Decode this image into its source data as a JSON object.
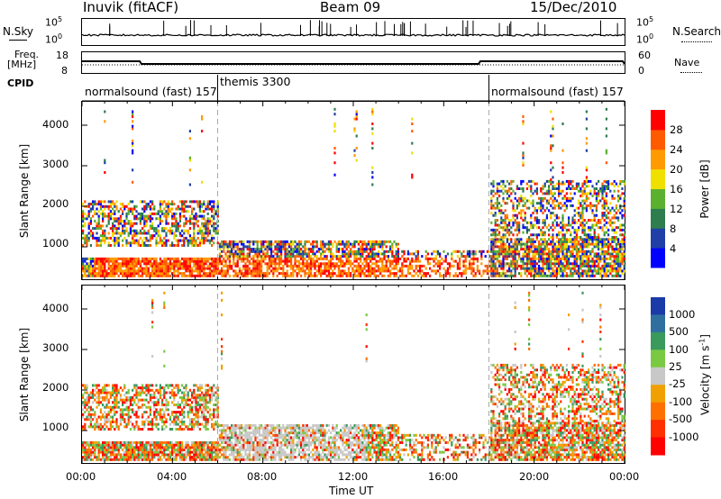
{
  "header": {
    "station": "Inuvik (fitACF)",
    "beam": "Beam 09",
    "date": "15/Dec/2010"
  },
  "noise_panel": {
    "left_label": "N.Sky",
    "left_ticks": [
      "10^5",
      "10^0"
    ],
    "right_ticks": [
      "10^5",
      "10^0"
    ],
    "right_label": "N.Search"
  },
  "freq_panel": {
    "left_label_1": "Freq.",
    "left_label_2": "[MHz]",
    "left_ticks": [
      "18",
      "8"
    ],
    "right_ticks": [
      "60",
      "0"
    ],
    "right_label": "Nave"
  },
  "cpid_panel": {
    "label": "CPID",
    "modes": [
      "normalsound (fast) 157",
      "themis 3300",
      "normalsound (fast) 157"
    ]
  },
  "colors": {
    "power": [
      "#0000ff",
      "#1f3fa6",
      "#2e7d4f",
      "#5cb030",
      "#f0e000",
      "#ff9a00",
      "#ff5a00",
      "#ff0000"
    ],
    "velocity": [
      "#1a3aa8",
      "#2f6fa0",
      "#3a9a5e",
      "#7ac943",
      "#c8c8c8",
      "#f0a000",
      "#ff7000",
      "#ff3000",
      "#ff0000"
    ]
  },
  "chart_data": [
    {
      "type": "heatmap",
      "name": "power",
      "ylabel": "Slant Range [km]",
      "yticks": [
        "1000",
        "2000",
        "3000",
        "4000"
      ],
      "ylim": [
        200,
        4600
      ],
      "colorbar_label": "Power [dB]",
      "colorbar_ticks": [
        "4",
        "8",
        "12",
        "16",
        "20",
        "24",
        "28"
      ]
    },
    {
      "type": "heatmap",
      "name": "velocity",
      "ylabel": "Slant Range [km]",
      "yticks": [
        "1000",
        "2000",
        "3000",
        "4000"
      ],
      "ylim": [
        200,
        4600
      ],
      "colorbar_label": "Velocity [m s^-1]",
      "colorbar_ticks": [
        "1000",
        "500",
        "100",
        "25",
        "-25",
        "-100",
        "-500",
        "-1000"
      ]
    }
  ],
  "xaxis": {
    "ticks": [
      "00:00",
      "04:00",
      "08:00",
      "12:00",
      "16:00",
      "20:00",
      "00:00"
    ],
    "label": "Time UT"
  }
}
